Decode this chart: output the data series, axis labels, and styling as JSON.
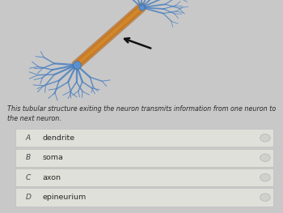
{
  "bg_color": "#c8c8c8",
  "panel_color": "#d4d4d4",
  "question_text": "This tubular structure exiting the neuron transmits information from one neuron to\nthe next neuron.",
  "options": [
    {
      "label": "A",
      "text": "dendrite"
    },
    {
      "label": "B",
      "text": "soma"
    },
    {
      "label": "C",
      "text": "axon"
    },
    {
      "label": "D",
      "text": "epineurium"
    }
  ],
  "question_fontsize": 5.8,
  "option_fontsize": 6.8,
  "label_fontsize": 6.5,
  "table_bg": "#e0e0da",
  "table_border": "#b8b8b8",
  "text_color": "#2a2a2a",
  "label_color": "#444444",
  "axon_color1": "#c87820",
  "axon_color2": "#b06010",
  "dendrite_color": "#4a80c0",
  "soma_color": "#5a90d0",
  "arrow_color": "#111111"
}
